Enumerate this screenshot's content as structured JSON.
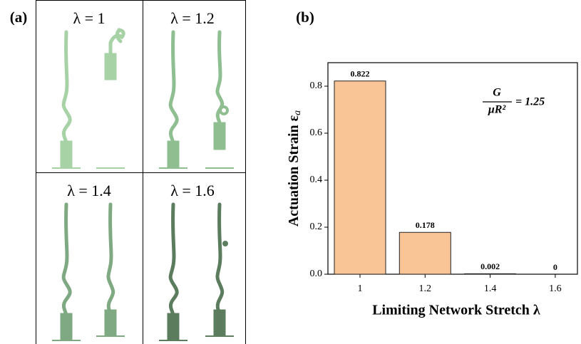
{
  "panel_labels": [
    "(a)",
    "(b)"
  ],
  "simulations": [
    {
      "label": "λ = 1"
    },
    {
      "label": "λ = 1.2"
    },
    {
      "label": "λ = 1.4"
    },
    {
      "label": "λ = 1.6"
    }
  ],
  "chart_data": {
    "type": "bar",
    "x_label": "Limiting Network Stretch λ",
    "y_label": "Actuation Strain ε",
    "y_label_subscript": "a",
    "annotation": {
      "numerator": "G",
      "denominator": "μR²",
      "rest": "= 1.25"
    },
    "categories": [
      "1",
      "1.2",
      "1.4",
      "1.6"
    ],
    "values": [
      0.822,
      0.178,
      0.002,
      0
    ],
    "color": "#f9c596",
    "ylim": [
      0,
      0.9
    ],
    "yticks": [
      {
        "value": 0,
        "label": "0.0"
      },
      0.2,
      0.4,
      0.6,
      0.8
    ]
  }
}
